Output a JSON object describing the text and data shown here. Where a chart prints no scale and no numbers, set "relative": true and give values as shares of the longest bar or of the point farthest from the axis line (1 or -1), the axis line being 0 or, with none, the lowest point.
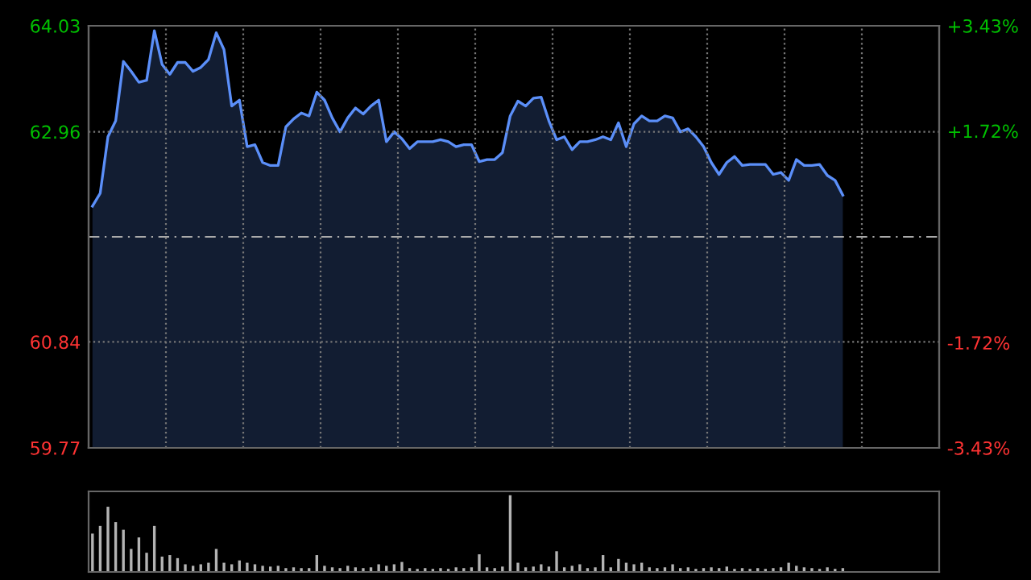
{
  "chart_data": [
    {
      "type": "area",
      "categories": [
        null,
        null,
        null,
        null,
        null,
        null,
        null,
        null,
        null,
        null,
        null,
        null,
        null,
        null,
        null,
        null,
        null,
        null,
        null,
        null,
        null,
        null,
        null,
        null,
        null,
        null,
        null,
        null,
        null,
        null,
        null,
        null,
        null,
        null,
        null,
        null,
        null,
        null,
        null,
        null,
        null,
        null,
        null,
        null,
        null,
        null,
        null,
        null,
        null,
        null,
        null,
        null,
        null,
        null,
        null,
        null,
        null,
        null,
        null,
        null,
        null,
        null,
        null,
        null,
        null,
        null,
        null,
        null,
        null,
        null,
        null,
        null,
        null,
        null,
        null,
        null,
        null,
        null,
        null,
        null,
        null,
        null,
        null,
        null,
        null,
        null,
        null,
        null,
        null,
        null,
        null,
        null,
        null,
        null,
        null,
        null,
        null,
        null
      ],
      "series": [
        {
          "color": "#5b8ff9",
          "values": [
            62.21,
            62.34,
            62.91,
            63.07,
            63.67,
            63.57,
            63.46,
            63.48,
            63.98,
            63.64,
            63.54,
            63.66,
            63.66,
            63.57,
            63.61,
            63.69,
            63.96,
            63.79,
            63.22,
            63.28,
            62.81,
            62.83,
            62.65,
            62.62,
            62.62,
            63.01,
            63.09,
            63.15,
            63.12,
            63.36,
            63.28,
            63.1,
            62.96,
            63.1,
            63.2,
            63.14,
            63.22,
            63.28,
            62.86,
            62.96,
            62.89,
            62.79,
            62.86,
            62.86,
            62.86,
            62.88,
            62.86,
            62.81,
            62.83,
            62.83,
            62.66,
            62.68,
            62.68,
            62.75,
            63.12,
            63.27,
            63.22,
            63.3,
            63.31,
            63.07,
            62.88,
            62.91,
            62.78,
            62.86,
            62.86,
            62.88,
            62.91,
            62.88,
            63.05,
            62.81,
            63.04,
            63.12,
            63.07,
            63.07,
            63.12,
            63.1,
            62.96,
            62.99,
            62.91,
            62.81,
            62.65,
            62.53,
            62.65,
            62.71,
            62.62,
            62.63,
            62.63,
            62.63,
            62.53,
            62.55,
            62.47,
            62.68,
            62.62,
            62.62,
            62.63,
            62.52,
            62.47,
            62.32
          ]
        }
      ],
      "ylim": [
        59.77,
        64.03
      ],
      "yticks": [
        59.77,
        60.84,
        62.96,
        64.03
      ],
      "y2lim": [
        -3.43,
        3.43
      ],
      "y2ticks": [
        {
          "value": -3.43,
          "label": "-3.43%"
        },
        {
          "value": -1.72,
          "label": "-1.72%"
        },
        {
          "value": 1.72,
          "label": "+1.72%"
        },
        {
          "value": 3.43,
          "label": "+3.43%"
        }
      ],
      "ref_lines": [
        {
          "axis": "y",
          "value": 61.9,
          "line_style": "dashed",
          "color": "#aaaaaa"
        }
      ],
      "grid": true,
      "line_style": "solid"
    },
    {
      "type": "bar",
      "relative": true,
      "color": "#b4b4b4",
      "categories": [
        null,
        null,
        null,
        null,
        null,
        null,
        null,
        null,
        null,
        null,
        null,
        null,
        null,
        null,
        null,
        null,
        null,
        null,
        null,
        null,
        null,
        null,
        null,
        null,
        null,
        null,
        null,
        null,
        null,
        null,
        null,
        null,
        null,
        null,
        null,
        null,
        null,
        null,
        null,
        null,
        null,
        null,
        null,
        null,
        null,
        null,
        null,
        null,
        null,
        null,
        null,
        null,
        null,
        null,
        null,
        null,
        null,
        null,
        null,
        null,
        null,
        null,
        null,
        null,
        null,
        null,
        null,
        null,
        null,
        null,
        null,
        null,
        null,
        null,
        null,
        null,
        null,
        null,
        null,
        null,
        null,
        null,
        null,
        null,
        null,
        null,
        null,
        null,
        null,
        null,
        null,
        null,
        null,
        null,
        null,
        null,
        null,
        null
      ],
      "values": [
        0.5,
        0.6,
        0.85,
        0.65,
        0.55,
        0.3,
        0.45,
        0.25,
        0.6,
        0.2,
        0.22,
        0.18,
        0.1,
        0.08,
        0.1,
        0.12,
        0.3,
        0.12,
        0.1,
        0.15,
        0.12,
        0.1,
        0.08,
        0.07,
        0.08,
        0.05,
        0.06,
        0.05,
        0.05,
        0.22,
        0.08,
        0.06,
        0.05,
        0.08,
        0.06,
        0.05,
        0.06,
        0.1,
        0.08,
        0.1,
        0.13,
        0.05,
        0.04,
        0.05,
        0.04,
        0.05,
        0.04,
        0.06,
        0.05,
        0.06,
        0.23,
        0.06,
        0.05,
        0.07,
        1,
        0.12,
        0.06,
        0.07,
        0.1,
        0.07,
        0.27,
        0.06,
        0.08,
        0.1,
        0.05,
        0.06,
        0.22,
        0.06,
        0.17,
        0.12,
        0.1,
        0.12,
        0.06,
        0.05,
        0.06,
        0.1,
        0.05,
        0.06,
        0.04,
        0.05,
        0.06,
        0.05,
        0.07,
        0.04,
        0.05,
        0.04,
        0.05,
        0.04,
        0.05,
        0.06,
        0.12,
        0.08,
        0.06,
        0.05,
        0.04,
        0.06,
        0.04,
        0.05
      ]
    }
  ]
}
